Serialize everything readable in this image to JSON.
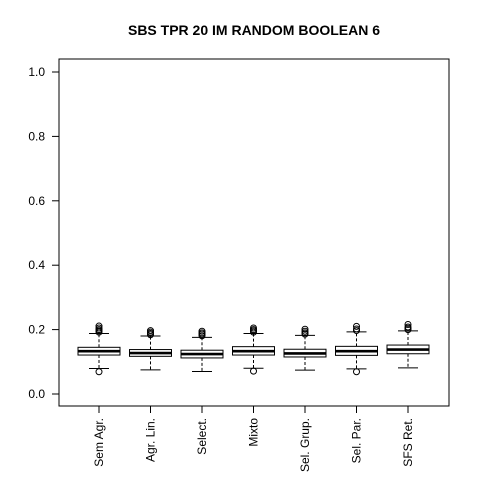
{
  "chart_data": {
    "type": "boxplot",
    "title": "SBS TPR 20 IM RANDOM BOOLEAN 6",
    "xlabel": "",
    "ylabel": "",
    "ylim": [
      0.0,
      1.0
    ],
    "yticks": [
      0.0,
      0.2,
      0.4,
      0.6,
      0.8,
      1.0
    ],
    "ytick_labels": [
      "0.0",
      "0.2",
      "0.4",
      "0.6",
      "0.8",
      "1.0"
    ],
    "grid": false,
    "categories": [
      "Sem Agr.",
      "Agr. Lin.",
      "Select.",
      "Mixto",
      "Sel. Grup.",
      "Sel. Par.",
      "SFS Ret."
    ],
    "boxes": [
      {
        "whisker_low": 0.079,
        "q1": 0.121,
        "median": 0.133,
        "q3": 0.145,
        "whisker_high": 0.188,
        "outliers": [
          0.069,
          0.192,
          0.196,
          0.2,
          0.205,
          0.211
        ]
      },
      {
        "whisker_low": 0.075,
        "q1": 0.117,
        "median": 0.127,
        "q3": 0.138,
        "whisker_high": 0.18,
        "outliers": [
          0.184,
          0.188,
          0.192,
          0.197
        ]
      },
      {
        "whisker_low": 0.07,
        "q1": 0.112,
        "median": 0.124,
        "q3": 0.136,
        "whisker_high": 0.176,
        "outliers": [
          0.181,
          0.186,
          0.19,
          0.195
        ]
      },
      {
        "whisker_low": 0.08,
        "q1": 0.121,
        "median": 0.133,
        "q3": 0.147,
        "whisker_high": 0.188,
        "outliers": [
          0.071,
          0.192,
          0.196,
          0.2,
          0.205
        ]
      },
      {
        "whisker_low": 0.074,
        "q1": 0.115,
        "median": 0.126,
        "q3": 0.139,
        "whisker_high": 0.182,
        "outliers": [
          0.186,
          0.19,
          0.195,
          0.201
        ]
      },
      {
        "whisker_low": 0.078,
        "q1": 0.12,
        "median": 0.133,
        "q3": 0.148,
        "whisker_high": 0.193,
        "outliers": [
          0.069,
          0.197,
          0.202,
          0.21
        ]
      },
      {
        "whisker_low": 0.081,
        "q1": 0.125,
        "median": 0.138,
        "q3": 0.152,
        "whisker_high": 0.196,
        "outliers": [
          0.2,
          0.204,
          0.208,
          0.216
        ]
      }
    ]
  }
}
